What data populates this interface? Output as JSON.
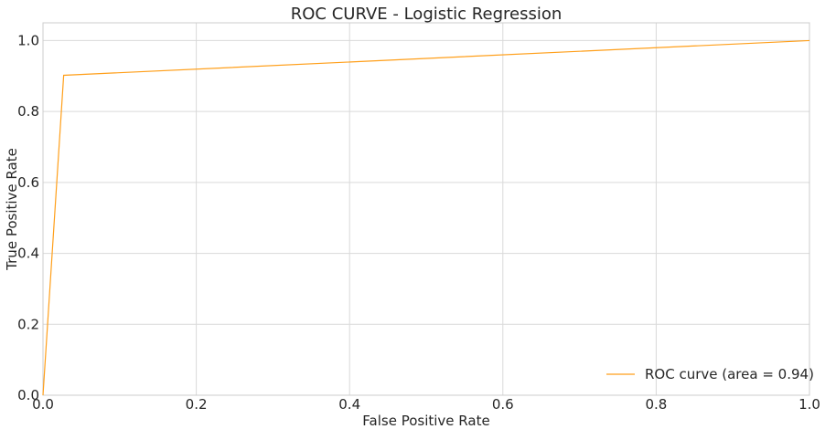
{
  "chart_data": {
    "type": "line",
    "title": "ROC CURVE - Logistic Regression",
    "xlabel": "False Positive Rate",
    "ylabel": "True Positive Rate",
    "xlim": [
      0.0,
      1.0
    ],
    "ylim": [
      0.0,
      1.05
    ],
    "xticks": [
      0.0,
      0.2,
      0.4,
      0.6,
      0.8,
      1.0
    ],
    "yticks": [
      0.0,
      0.2,
      0.4,
      0.6,
      0.8,
      1.0
    ],
    "xtick_labels": [
      "0.0",
      "0.2",
      "0.4",
      "0.6",
      "0.8",
      "1.0"
    ],
    "ytick_labels": [
      "0.0",
      "0.2",
      "0.4",
      "0.6",
      "0.8",
      "1.0"
    ],
    "grid": true,
    "legend_position": "bottom-right",
    "series": [
      {
        "name": "ROC curve (area = 0.94)",
        "color": "#ff9f1a",
        "x": [
          0.0,
          0.027,
          1.0
        ],
        "y": [
          0.0,
          0.902,
          1.0
        ]
      }
    ]
  }
}
